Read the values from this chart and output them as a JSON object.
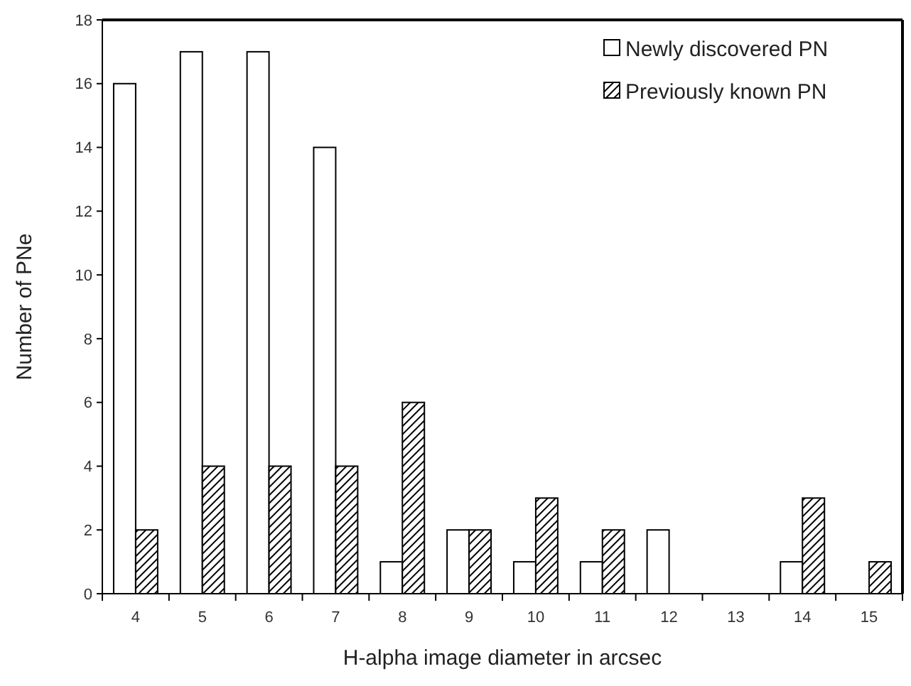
{
  "chart_data": {
    "type": "bar",
    "xlabel": "H-alpha image diameter in arcsec",
    "ylabel": "Number of PNe",
    "categories": [
      "4",
      "5",
      "6",
      "7",
      "8",
      "9",
      "10",
      "11",
      "12",
      "13",
      "14",
      "15"
    ],
    "series": [
      {
        "name": "Newly discovered PN",
        "color": "#ffffff",
        "values": [
          16,
          17,
          17,
          14,
          1,
          2,
          1,
          1,
          2,
          0,
          1,
          0
        ]
      },
      {
        "name": "Previously known PN",
        "color": "#000000",
        "values": [
          2,
          4,
          4,
          4,
          6,
          2,
          3,
          2,
          0,
          0,
          3,
          1
        ]
      }
    ],
    "ylim": [
      0,
      18
    ],
    "yticks": [
      0,
      2,
      4,
      6,
      8,
      10,
      12,
      14,
      16,
      18
    ],
    "grid": false,
    "legend": "top right"
  }
}
